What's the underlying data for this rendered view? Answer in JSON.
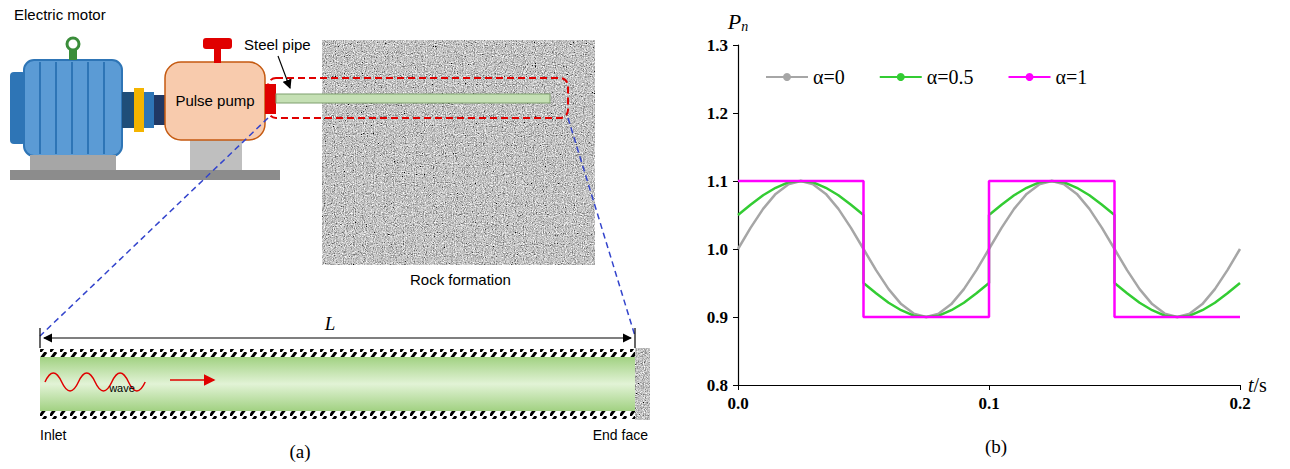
{
  "panels": [
    "(a)",
    "(b)"
  ],
  "diagram": {
    "motor": "Electric motor",
    "pump": "Pulse pump",
    "pipe": "Steel pipe",
    "rock": "Rock formation",
    "length": "L",
    "wave": "wave",
    "inlet": "Inlet",
    "end": "End face"
  },
  "chart_data": {
    "type": "line",
    "x_label": "t/s",
    "y_label": "Pn",
    "xlim": [
      0,
      0.2
    ],
    "xticks": [
      {
        "value": 0,
        "label": "0.0"
      },
      0.1,
      0.2
    ],
    "ylim": [
      0.8,
      1.3
    ],
    "yticks": [
      0.8,
      0.9,
      {
        "value": 1,
        "label": "1.0"
      },
      1.1,
      1.2,
      1.3
    ],
    "grid": false,
    "legend": "top",
    "series": [
      {
        "name": "α=0",
        "color": "#a6a6a6",
        "line_style": "solid",
        "x": [
          0,
          0.005,
          0.01,
          0.015,
          0.02,
          0.025,
          0.03,
          0.035,
          0.04,
          0.045,
          0.05,
          0.055,
          0.06,
          0.065,
          0.07,
          0.075,
          0.08,
          0.085,
          0.09,
          0.095,
          0.1,
          0.105,
          0.11,
          0.115,
          0.12,
          0.125,
          0.13,
          0.135,
          0.14,
          0.145,
          0.15,
          0.155,
          0.16,
          0.165,
          0.17,
          0.175,
          0.18,
          0.185,
          0.19,
          0.195,
          0.2
        ],
        "values": [
          1.0,
          1.031,
          1.059,
          1.081,
          1.095,
          1.1,
          1.095,
          1.081,
          1.059,
          1.031,
          1.0,
          0.969,
          0.941,
          0.919,
          0.905,
          0.9,
          0.905,
          0.919,
          0.941,
          0.969,
          1.0,
          1.031,
          1.059,
          1.081,
          1.095,
          1.1,
          1.095,
          1.081,
          1.059,
          1.031,
          1.0,
          0.969,
          0.941,
          0.919,
          0.905,
          0.9,
          0.905,
          0.919,
          0.941,
          0.969,
          1.0
        ]
      },
      {
        "name": "α=0.5",
        "color": "#33cc33",
        "line_style": "solid",
        "x": [
          0,
          0.005,
          0.01,
          0.015,
          0.02,
          0.025,
          0.03,
          0.035,
          0.04,
          0.045,
          0.05,
          0.05,
          0.055,
          0.06,
          0.065,
          0.07,
          0.075,
          0.08,
          0.085,
          0.09,
          0.095,
          0.1,
          0.1,
          0.105,
          0.11,
          0.115,
          0.12,
          0.125,
          0.13,
          0.135,
          0.14,
          0.145,
          0.15,
          0.15,
          0.155,
          0.16,
          0.165,
          0.17,
          0.175,
          0.18,
          0.185,
          0.19,
          0.195,
          0.2
        ],
        "values": [
          1.05,
          1.065,
          1.079,
          1.09,
          1.098,
          1.1,
          1.098,
          1.09,
          1.079,
          1.065,
          1.05,
          0.95,
          0.935,
          0.921,
          0.91,
          0.902,
          0.9,
          0.902,
          0.91,
          0.921,
          0.935,
          0.95,
          1.05,
          1.065,
          1.079,
          1.09,
          1.098,
          1.1,
          1.098,
          1.09,
          1.079,
          1.065,
          1.05,
          0.95,
          0.935,
          0.921,
          0.91,
          0.902,
          0.9,
          0.902,
          0.91,
          0.921,
          0.935,
          0.95
        ]
      },
      {
        "name": "α=1",
        "color": "#ff00ff",
        "line_style": "solid",
        "x": [
          0,
          0.05,
          0.05,
          0.1,
          0.1,
          0.15,
          0.15,
          0.2
        ],
        "values": [
          1.1,
          1.1,
          0.9,
          0.9,
          1.1,
          1.1,
          0.9,
          0.9
        ]
      }
    ]
  }
}
